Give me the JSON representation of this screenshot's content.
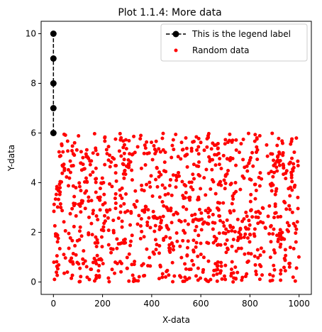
{
  "chart_data": {
    "type": "scatter",
    "title": "Plot 1.1.4: More data",
    "xlabel": "X-data",
    "ylabel": "Y-data",
    "xlim": [
      -50,
      1050
    ],
    "ylim": [
      -0.5,
      10.5
    ],
    "xticks": [
      0,
      200,
      400,
      600,
      800,
      1000
    ],
    "yticks": [
      0,
      2,
      4,
      6,
      8,
      10
    ],
    "grid": false,
    "legend_placement": "top-right",
    "series": [
      {
        "name": "This is the legend label",
        "kind": "line-marker",
        "color": "#000000",
        "linestyle": "dashed",
        "marker": "circle",
        "x": [
          0,
          0,
          0,
          0,
          0
        ],
        "y": [
          6,
          7,
          8,
          9,
          10
        ]
      },
      {
        "name": "Random data",
        "kind": "scatter",
        "color": "#ff0000",
        "marker": "circle",
        "count": 1000,
        "x_range": [
          0,
          1000
        ],
        "y_range": [
          0,
          6
        ],
        "distribution": "uniform"
      }
    ]
  }
}
